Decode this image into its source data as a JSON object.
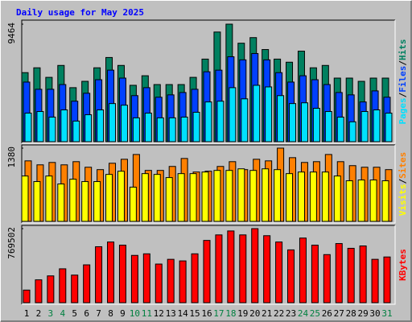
{
  "title": "Daily usage for May 2025",
  "categories": [
    "1",
    "2",
    "3",
    "4",
    "5",
    "6",
    "7",
    "8",
    "9",
    "10",
    "11",
    "12",
    "13",
    "14",
    "15",
    "16",
    "17",
    "18",
    "19",
    "20",
    "21",
    "22",
    "23",
    "24",
    "25",
    "26",
    "27",
    "28",
    "29",
    "30",
    "31"
  ],
  "category_colors": [
    "#000000",
    "#000000",
    "#008040",
    "#008040",
    "#000000",
    "#000000",
    "#000000",
    "#000000",
    "#000000",
    "#008040",
    "#008040",
    "#000000",
    "#000000",
    "#000000",
    "#000000",
    "#000000",
    "#008040",
    "#008040",
    "#000000",
    "#000000",
    "#000000",
    "#000000",
    "#000000",
    "#008040",
    "#008040",
    "#000000",
    "#000000",
    "#000000",
    "#000000",
    "#000000",
    "#008040"
  ],
  "legend_separator": "/",
  "chart_data": [
    {
      "type": "bar",
      "ylim": [
        0,
        9464
      ],
      "yticks": [
        9464
      ],
      "series": [
        {
          "name": "Hits",
          "color": "#008060",
          "values": [
            5560,
            5950,
            5180,
            6140,
            4350,
            4860,
            5950,
            6780,
            6140,
            4540,
            5310,
            4600,
            4600,
            4600,
            5180,
            6650,
            8830,
            9464,
            7930,
            8380,
            7420,
            6650,
            6400,
            7290,
            5950,
            6140,
            5120,
            5120,
            4860,
            5120,
            5120
          ]
        },
        {
          "name": "Files",
          "color": "#0040ff",
          "values": [
            4800,
            4220,
            4220,
            4600,
            3260,
            3900,
            4990,
            5760,
            5120,
            3710,
            4350,
            3580,
            3770,
            3960,
            4220,
            5630,
            5760,
            6840,
            6590,
            7100,
            6590,
            5560,
            4800,
            5310,
            4990,
            4600,
            3960,
            3770,
            3200,
            4090,
            3580
          ]
        },
        {
          "name": "Pages",
          "color": "#00e0ff",
          "values": [
            2300,
            2430,
            1980,
            2560,
            1660,
            2170,
            2560,
            3070,
            2940,
            1920,
            2300,
            1920,
            1920,
            1980,
            2370,
            3200,
            3260,
            4350,
            3450,
            4540,
            4410,
            3710,
            3070,
            3130,
            2690,
            2430,
            1980,
            1600,
            2430,
            2560,
            2300
          ]
        }
      ]
    },
    {
      "type": "bar",
      "ylim": [
        0,
        1380
      ],
      "yticks": [
        1380
      ],
      "series": [
        {
          "name": "Sites",
          "color": "#ff8000",
          "values": [
            1140,
            1065,
            1110,
            1065,
            1125,
            1020,
            975,
            1095,
            1170,
            1260,
            960,
            960,
            1035,
            1185,
            930,
            945,
            1035,
            1125,
            975,
            1170,
            1140,
            1380,
            1200,
            1110,
            1125,
            1260,
            1125,
            1050,
            1020,
            1020,
            975
          ]
        },
        {
          "name": "Visits",
          "color": "#ffff00",
          "values": [
            855,
            750,
            855,
            705,
            795,
            750,
            750,
            885,
            945,
            645,
            900,
            885,
            825,
            900,
            900,
            930,
            960,
            960,
            990,
            960,
            990,
            975,
            900,
            930,
            930,
            930,
            855,
            765,
            780,
            780,
            765
          ]
        }
      ]
    },
    {
      "type": "bar",
      "ylim": [
        0,
        769502
      ],
      "yticks": [
        769502
      ],
      "series": [
        {
          "name": "KBytes",
          "color": "#ff0000",
          "values": [
            131000,
            237500,
            278500,
            352000,
            286700,
            393000,
            581500,
            630600,
            597900,
            491400,
            507800,
            401300,
            450500,
            434100,
            507800,
            647000,
            704300,
            745300,
            704300,
            769502,
            696100,
            630600,
            548700,
            671600,
            597900,
            499600,
            614300,
            565100,
            589700,
            450500,
            475000
          ]
        }
      ]
    }
  ]
}
